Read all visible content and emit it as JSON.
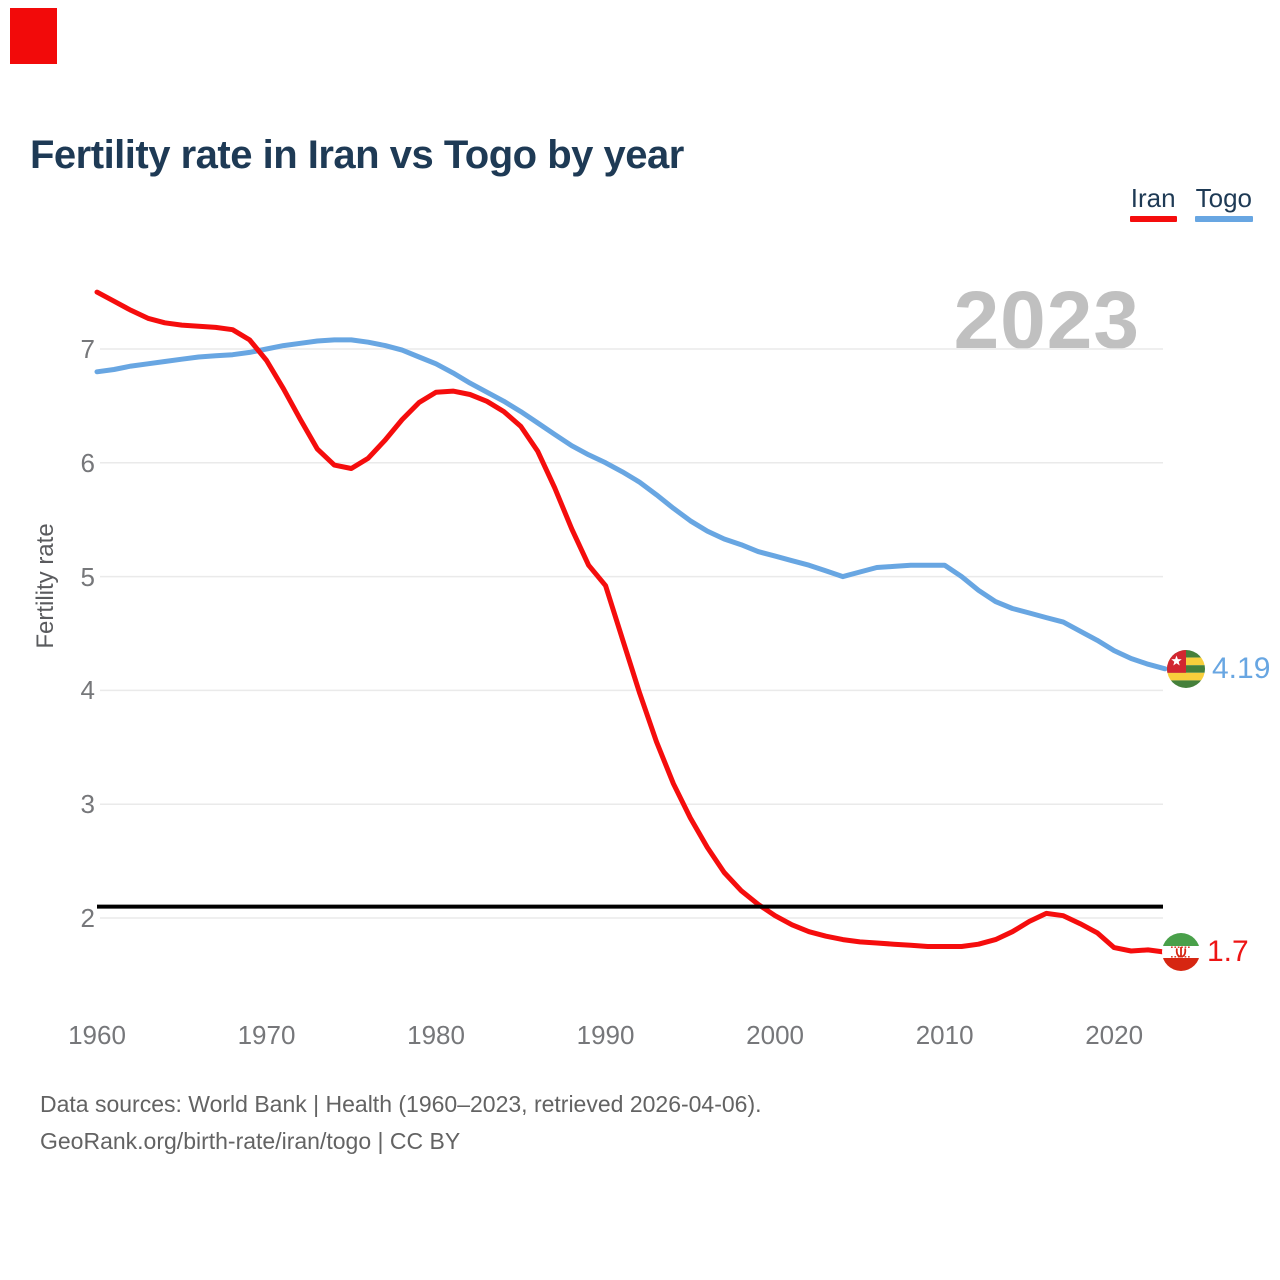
{
  "corner_mark": {
    "color": "#f20a0a"
  },
  "header": {
    "title": "Fertility rate in Iran vs Togo by year"
  },
  "legend": {
    "items": [
      {
        "label": "Iran",
        "color": "#f50d0d"
      },
      {
        "label": "Togo",
        "color": "#68a6e2"
      }
    ]
  },
  "watermark": {
    "text": "2023"
  },
  "chart_data": {
    "type": "line",
    "title": "Fertility rate in Iran vs Togo by year",
    "xlabel": "",
    "ylabel": "Fertility rate",
    "x_ticks": [
      1960,
      1970,
      1980,
      1990,
      2000,
      2010,
      2020
    ],
    "y_ticks": [
      2,
      3,
      4,
      5,
      6,
      7
    ],
    "x_range": [
      1960,
      2023
    ],
    "ylim": [
      1.55,
      7.6
    ],
    "grid": "horizontal",
    "legend_position": "top-right",
    "reference_line": {
      "value": 2.1,
      "color": "#000000"
    },
    "x": [
      1960,
      1961,
      1962,
      1963,
      1964,
      1965,
      1966,
      1967,
      1968,
      1969,
      1970,
      1971,
      1972,
      1973,
      1974,
      1975,
      1976,
      1977,
      1978,
      1979,
      1980,
      1981,
      1982,
      1983,
      1984,
      1985,
      1986,
      1987,
      1988,
      1989,
      1990,
      1991,
      1992,
      1993,
      1994,
      1995,
      1996,
      1997,
      1998,
      1999,
      2000,
      2001,
      2002,
      2003,
      2004,
      2005,
      2006,
      2007,
      2008,
      2009,
      2010,
      2011,
      2012,
      2013,
      2014,
      2015,
      2016,
      2017,
      2018,
      2019,
      2020,
      2021,
      2022,
      2023
    ],
    "series": [
      {
        "name": "Iran",
        "color": "#f50d0d",
        "end_label": "1.7",
        "values": [
          7.5,
          7.42,
          7.34,
          7.27,
          7.23,
          7.21,
          7.2,
          7.19,
          7.17,
          7.08,
          6.9,
          6.65,
          6.38,
          6.12,
          5.98,
          5.95,
          6.04,
          6.2,
          6.38,
          6.53,
          6.62,
          6.63,
          6.6,
          6.54,
          6.45,
          6.32,
          6.1,
          5.78,
          5.42,
          5.1,
          4.92,
          4.45,
          3.98,
          3.55,
          3.18,
          2.88,
          2.62,
          2.4,
          2.24,
          2.12,
          2.02,
          1.94,
          1.88,
          1.84,
          1.81,
          1.79,
          1.78,
          1.77,
          1.76,
          1.75,
          1.75,
          1.75,
          1.77,
          1.81,
          1.88,
          1.97,
          2.04,
          2.02,
          1.95,
          1.87,
          1.74,
          1.71,
          1.72,
          1.7
        ]
      },
      {
        "name": "Togo",
        "color": "#68a6e2",
        "end_label": "4.19",
        "values": [
          6.8,
          6.82,
          6.85,
          6.87,
          6.89,
          6.91,
          6.93,
          6.94,
          6.95,
          6.97,
          7.0,
          7.03,
          7.05,
          7.07,
          7.08,
          7.08,
          7.06,
          7.03,
          6.99,
          6.93,
          6.87,
          6.79,
          6.7,
          6.62,
          6.54,
          6.45,
          6.35,
          6.25,
          6.15,
          6.07,
          6.0,
          5.92,
          5.83,
          5.72,
          5.6,
          5.49,
          5.4,
          5.33,
          5.28,
          5.22,
          5.18,
          5.14,
          5.1,
          5.05,
          5.0,
          5.04,
          5.08,
          5.09,
          5.1,
          5.1,
          5.1,
          5.0,
          4.88,
          4.78,
          4.72,
          4.68,
          4.64,
          4.6,
          4.52,
          4.44,
          4.35,
          4.28,
          4.23,
          4.19
        ]
      }
    ]
  },
  "footer": {
    "line1": "Data sources: World Bank | Health (1960–2023, retrieved 2026-04-06).",
    "line2": "GeoRank.org/birth-rate/iran/togo | CC BY"
  }
}
